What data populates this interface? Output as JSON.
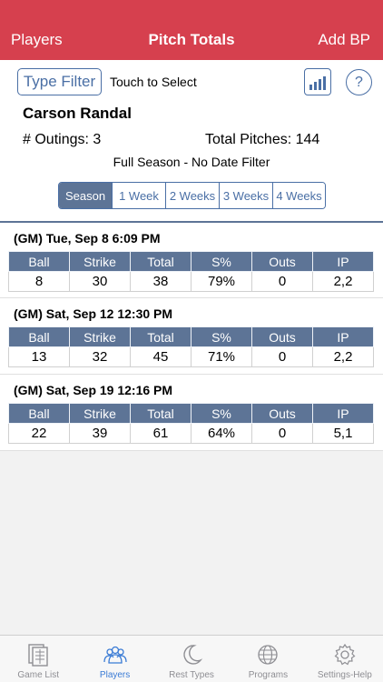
{
  "navbar": {
    "left": "Players",
    "title": "Pitch Totals",
    "right": "Add BP",
    "color": "#d6404e"
  },
  "toolbar": {
    "filter_button": "Type Filter",
    "touch_label": "Touch to Select",
    "chart_icon": "bar-chart-icon",
    "help_label": "?"
  },
  "player": {
    "name": "Carson Randal",
    "outings": "# Outings: 3",
    "total_pitches": "Total Pitches: 144",
    "date_filter": "Full Season - No Date Filter"
  },
  "segments": [
    {
      "label": "Season",
      "active": true
    },
    {
      "label": "1 Week",
      "active": false
    },
    {
      "label": "2 Weeks",
      "active": false
    },
    {
      "label": "3 Weeks",
      "active": false
    },
    {
      "label": "4 Weeks",
      "active": false
    }
  ],
  "columns": [
    "Ball",
    "Strike",
    "Total",
    "S%",
    "Outs",
    "IP"
  ],
  "outings": [
    {
      "title": "(GM) Tue, Sep 8 6:09 PM",
      "values": [
        "8",
        "30",
        "38",
        "79%",
        "0",
        "2,2"
      ]
    },
    {
      "title": "(GM) Sat, Sep 12 12:30 PM",
      "values": [
        "13",
        "32",
        "45",
        "71%",
        "0",
        "2,2"
      ]
    },
    {
      "title": "(GM) Sat, Sep 19 12:16 PM",
      "values": [
        "22",
        "39",
        "61",
        "64%",
        "0",
        "5,1"
      ]
    }
  ],
  "tabs": [
    {
      "label": "Game List",
      "icon": "game-list-icon",
      "active": false
    },
    {
      "label": "Players",
      "icon": "players-icon",
      "active": true
    },
    {
      "label": "Rest Types",
      "icon": "moon-icon",
      "active": false
    },
    {
      "label": "Programs",
      "icon": "globe-icon",
      "active": false
    },
    {
      "label": "Settings-Help",
      "icon": "gear-icon",
      "active": false
    }
  ],
  "colors": {
    "accent": "#4a6fa5",
    "header_fill": "#5d7496",
    "active_tab": "#3a7bd5"
  }
}
